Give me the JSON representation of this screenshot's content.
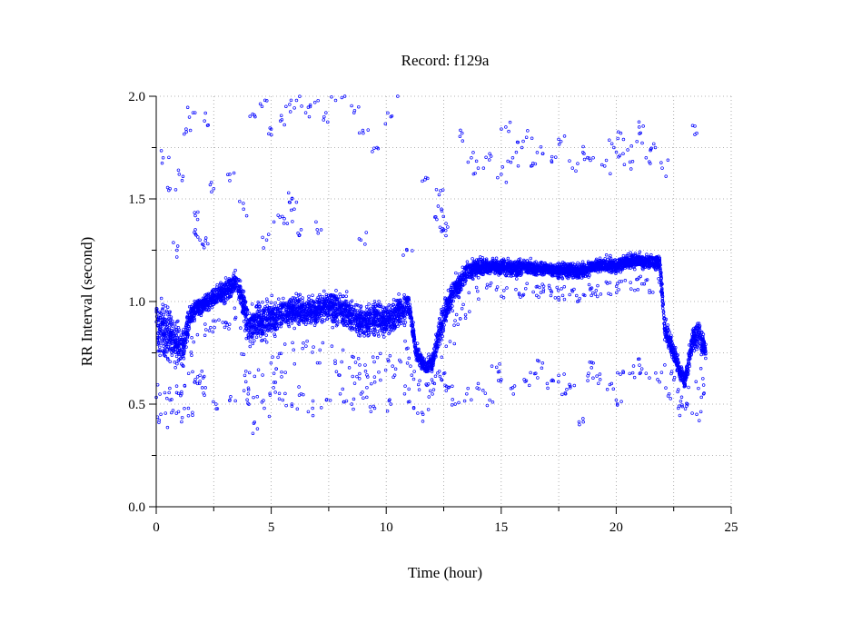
{
  "chart_data": {
    "type": "scatter",
    "title": "Record:  f129a",
    "xlabel": "Time (hour)",
    "ylabel": "RR Interval (second)",
    "xlim": [
      0,
      25
    ],
    "ylim": [
      0.0,
      2.0
    ],
    "x_ticks": [
      0,
      5,
      10,
      15,
      20,
      25
    ],
    "x_tick_labels": [
      "0",
      "5",
      "10",
      "15",
      "20",
      "25"
    ],
    "x_grid": [
      0,
      2.5,
      5,
      7.5,
      10,
      12.5,
      15,
      17.5,
      20,
      22.5,
      25
    ],
    "y_ticks": [
      0.0,
      0.5,
      1.0,
      1.5,
      2.0
    ],
    "y_tick_labels": [
      "0.0",
      "0.5",
      "1.0",
      "1.5",
      "2.0"
    ],
    "y_grid": [
      0.0,
      0.25,
      0.5,
      0.75,
      1.0,
      1.25,
      1.5,
      1.75,
      2.0
    ],
    "grid": true,
    "marker_color": "#0000ff",
    "series": [
      {
        "kind": "main_band",
        "points": [
          [
            0.0,
            0.88,
            0.17
          ],
          [
            0.4,
            0.85,
            0.17
          ],
          [
            0.8,
            0.8,
            0.14
          ],
          [
            1.2,
            0.78,
            0.13
          ],
          [
            1.5,
            0.94,
            0.07
          ],
          [
            2.0,
            0.98,
            0.06
          ],
          [
            2.5,
            1.02,
            0.06
          ],
          [
            3.0,
            1.05,
            0.07
          ],
          [
            3.5,
            1.1,
            0.07
          ],
          [
            3.8,
            0.98,
            0.1
          ],
          [
            4.0,
            0.88,
            0.14
          ],
          [
            4.5,
            0.9,
            0.12
          ],
          [
            5.0,
            0.92,
            0.13
          ],
          [
            5.5,
            0.94,
            0.1
          ],
          [
            6.0,
            0.96,
            0.1
          ],
          [
            6.5,
            0.95,
            0.09
          ],
          [
            7.0,
            0.96,
            0.09
          ],
          [
            7.5,
            0.98,
            0.1
          ],
          [
            8.0,
            0.96,
            0.12
          ],
          [
            8.5,
            0.93,
            0.11
          ],
          [
            9.0,
            0.9,
            0.11
          ],
          [
            9.5,
            0.92,
            0.11
          ],
          [
            10.0,
            0.9,
            0.1
          ],
          [
            10.5,
            0.95,
            0.1
          ],
          [
            11.0,
            0.98,
            0.1
          ],
          [
            11.3,
            0.75,
            0.06
          ],
          [
            11.7,
            0.68,
            0.05
          ],
          [
            12.0,
            0.7,
            0.06
          ],
          [
            12.3,
            0.85,
            0.1
          ],
          [
            12.7,
            1.0,
            0.1
          ],
          [
            13.0,
            1.06,
            0.09
          ],
          [
            13.5,
            1.14,
            0.07
          ],
          [
            14.0,
            1.17,
            0.06
          ],
          [
            14.5,
            1.17,
            0.05
          ],
          [
            15.0,
            1.17,
            0.05
          ],
          [
            15.5,
            1.16,
            0.06
          ],
          [
            16.0,
            1.17,
            0.05
          ],
          [
            16.5,
            1.16,
            0.05
          ],
          [
            17.0,
            1.16,
            0.04
          ],
          [
            17.5,
            1.15,
            0.05
          ],
          [
            18.0,
            1.15,
            0.05
          ],
          [
            18.5,
            1.15,
            0.05
          ],
          [
            19.0,
            1.17,
            0.05
          ],
          [
            19.5,
            1.18,
            0.05
          ],
          [
            20.0,
            1.17,
            0.05
          ],
          [
            20.5,
            1.2,
            0.05
          ],
          [
            21.0,
            1.2,
            0.05
          ],
          [
            21.5,
            1.19,
            0.05
          ],
          [
            21.9,
            1.19,
            0.05
          ],
          [
            22.1,
            0.88,
            0.07
          ],
          [
            22.5,
            0.75,
            0.07
          ],
          [
            22.8,
            0.65,
            0.05
          ],
          [
            23.0,
            0.62,
            0.05
          ],
          [
            23.3,
            0.8,
            0.09
          ],
          [
            23.6,
            0.85,
            0.09
          ],
          [
            23.9,
            0.75,
            0.06
          ]
        ]
      },
      {
        "kind": "upper_scatter",
        "points": [
          [
            0.3,
            1.7
          ],
          [
            0.6,
            1.55
          ],
          [
            1.0,
            1.62
          ],
          [
            1.3,
            1.84
          ],
          [
            1.6,
            1.92
          ],
          [
            1.7,
            1.35
          ],
          [
            1.8,
            1.4
          ],
          [
            1.9,
            1.3
          ],
          [
            2.0,
            1.28
          ],
          [
            2.1,
            1.88
          ],
          [
            2.5,
            1.55
          ],
          [
            3.2,
            1.62
          ],
          [
            4.3,
            1.9
          ],
          [
            4.6,
            1.95
          ],
          [
            5.0,
            1.84
          ],
          [
            5.4,
            1.88
          ],
          [
            5.8,
            1.96
          ],
          [
            6.1,
            1.98
          ],
          [
            6.5,
            1.92
          ],
          [
            6.9,
            1.97
          ],
          [
            7.3,
            1.9
          ],
          [
            7.8,
            1.98
          ],
          [
            8.2,
            2.0
          ],
          [
            8.6,
            1.92
          ],
          [
            9.0,
            1.82
          ],
          [
            9.6,
            1.75
          ],
          [
            10.2,
            1.9
          ],
          [
            10.5,
            2.0
          ],
          [
            5.3,
            1.42
          ],
          [
            5.7,
            1.38
          ],
          [
            6.0,
            1.45
          ],
          [
            6.3,
            1.35
          ],
          [
            5.9,
            1.5
          ],
          [
            12.2,
            1.4
          ],
          [
            12.4,
            1.45
          ],
          [
            12.6,
            1.38
          ],
          [
            12.3,
            1.52
          ],
          [
            12.5,
            1.35
          ],
          [
            11.8,
            1.6
          ],
          [
            13.7,
            1.7
          ],
          [
            14.0,
            1.65
          ],
          [
            14.5,
            1.72
          ],
          [
            15.0,
            1.62
          ],
          [
            15.5,
            1.7
          ],
          [
            15.9,
            1.75
          ],
          [
            16.3,
            1.66
          ],
          [
            16.8,
            1.72
          ],
          [
            17.2,
            1.68
          ],
          [
            17.6,
            1.78
          ],
          [
            18.1,
            1.65
          ],
          [
            18.6,
            1.72
          ],
          [
            19.0,
            1.7
          ],
          [
            19.5,
            1.66
          ],
          [
            19.9,
            1.75
          ],
          [
            20.3,
            1.72
          ],
          [
            20.6,
            1.68
          ],
          [
            20.9,
            1.78
          ],
          [
            21.3,
            1.7
          ],
          [
            21.7,
            1.75
          ],
          [
            22.0,
            1.65
          ],
          [
            13.3,
            1.82
          ],
          [
            15.2,
            1.85
          ],
          [
            20.2,
            1.82
          ],
          [
            21.0,
            1.85
          ],
          [
            16.1,
            1.8
          ],
          [
            23.5,
            1.82
          ],
          [
            0.9,
            1.25
          ],
          [
            3.8,
            1.45
          ],
          [
            4.8,
            1.3
          ],
          [
            7.0,
            1.35
          ],
          [
            8.9,
            1.3
          ],
          [
            10.9,
            1.25
          ]
        ]
      },
      {
        "kind": "lower_scatter",
        "points": [
          [
            0.2,
            0.45
          ],
          [
            0.6,
            0.52
          ],
          [
            1.1,
            0.55
          ],
          [
            1.4,
            0.48
          ],
          [
            1.7,
            0.62
          ],
          [
            1.8,
            0.6
          ],
          [
            1.9,
            0.64
          ],
          [
            2.0,
            0.58
          ],
          [
            2.6,
            0.5
          ],
          [
            3.2,
            0.52
          ],
          [
            4.0,
            0.55
          ],
          [
            4.4,
            0.38
          ],
          [
            4.7,
            0.48
          ],
          [
            5.1,
            0.58
          ],
          [
            5.5,
            0.52
          ],
          [
            5.9,
            0.5
          ],
          [
            6.3,
            0.55
          ],
          [
            6.8,
            0.48
          ],
          [
            7.4,
            0.52
          ],
          [
            8.0,
            0.55
          ],
          [
            8.5,
            0.5
          ],
          [
            9.0,
            0.53
          ],
          [
            9.5,
            0.48
          ],
          [
            10.2,
            0.5
          ],
          [
            10.8,
            0.55
          ],
          [
            11.2,
            0.48
          ],
          [
            11.6,
            0.45
          ],
          [
            12.1,
            0.6
          ],
          [
            12.4,
            0.62
          ],
          [
            12.7,
            0.58
          ],
          [
            13.0,
            0.5
          ],
          [
            13.5,
            0.55
          ],
          [
            14.0,
            0.6
          ],
          [
            14.5,
            0.52
          ],
          [
            15.0,
            0.62
          ],
          [
            15.5,
            0.58
          ],
          [
            16.0,
            0.62
          ],
          [
            16.5,
            0.65
          ],
          [
            17.0,
            0.6
          ],
          [
            17.5,
            0.64
          ],
          [
            18.0,
            0.58
          ],
          [
            18.4,
            0.4
          ],
          [
            18.8,
            0.65
          ],
          [
            19.3,
            0.62
          ],
          [
            19.8,
            0.6
          ],
          [
            20.3,
            0.66
          ],
          [
            20.8,
            0.63
          ],
          [
            21.3,
            0.65
          ],
          [
            21.8,
            0.62
          ],
          [
            22.3,
            0.55
          ],
          [
            22.7,
            0.48
          ],
          [
            23.1,
            0.5
          ],
          [
            23.5,
            0.45
          ],
          [
            23.8,
            0.55
          ],
          [
            14.8,
            0.68
          ],
          [
            16.8,
            0.7
          ],
          [
            19.0,
            0.7
          ],
          [
            21.0,
            0.72
          ],
          [
            17.8,
            0.55
          ],
          [
            20.0,
            0.52
          ]
        ]
      }
    ]
  }
}
